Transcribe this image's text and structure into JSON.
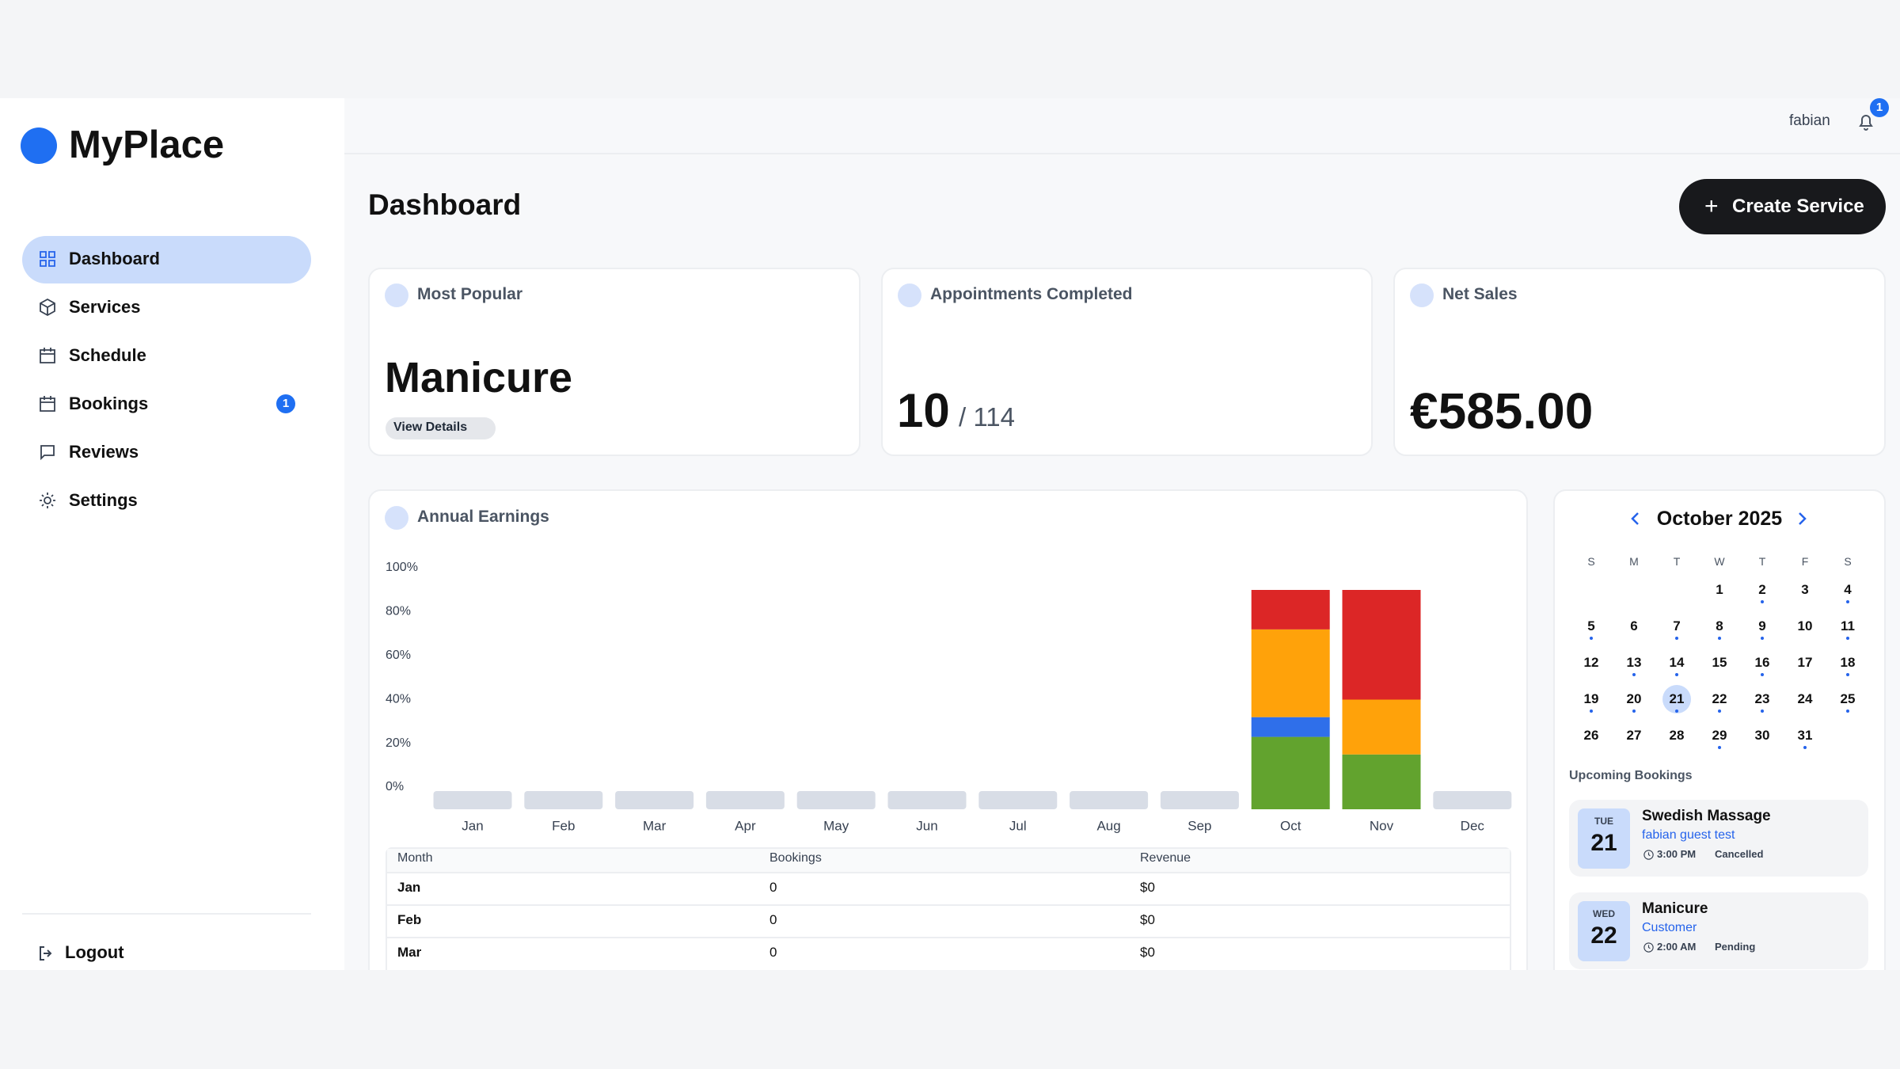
{
  "sidebar": {
    "brand": "MyPlace",
    "nav": [
      {
        "label": "Dashboard"
      },
      {
        "label": "Services"
      },
      {
        "label": "Schedule"
      },
      {
        "label": "Bookings",
        "badge": "1"
      },
      {
        "label": "Reviews"
      },
      {
        "label": "Settings"
      }
    ],
    "logout": "Logout"
  },
  "header": {
    "user": "fabian",
    "notifications": "1"
  },
  "page": {
    "title": "Dashboard",
    "action": "Create Service"
  },
  "cards": [
    {
      "title": "Most Popular",
      "value": "Manicure",
      "link": "View Details"
    },
    {
      "title": "Appointments Completed",
      "value": "10",
      "total": "/ 114"
    },
    {
      "title": "Net Sales",
      "value": "€585.00"
    }
  ],
  "earnings": {
    "title": "Annual Earnings",
    "table": {
      "columns": [
        "Month",
        "Bookings",
        "Revenue"
      ],
      "rows": [
        [
          "Jan",
          "0",
          "$0"
        ],
        [
          "Feb",
          "0",
          "$0"
        ],
        [
          "Mar",
          "0",
          "$0"
        ]
      ]
    }
  },
  "chart_data": {
    "type": "bar",
    "stacked": true,
    "categories": [
      "Jan",
      "Feb",
      "Mar",
      "Apr",
      "May",
      "Jun",
      "Jul",
      "Aug",
      "Sep",
      "Oct",
      "Nov",
      "Dec"
    ],
    "series": [
      {
        "color": "#62a32e",
        "values": [
          0,
          0,
          0,
          0,
          0,
          0,
          0,
          0,
          0,
          33,
          25,
          0
        ]
      },
      {
        "color": "#2f6fea",
        "values": [
          0,
          0,
          0,
          0,
          0,
          0,
          0,
          0,
          0,
          9,
          0,
          0
        ]
      },
      {
        "color": "#ffa20a",
        "values": [
          0,
          0,
          0,
          0,
          0,
          0,
          0,
          0,
          0,
          40,
          25,
          0
        ]
      },
      {
        "color": "#dc2626",
        "values": [
          0,
          0,
          0,
          0,
          0,
          0,
          0,
          0,
          0,
          18,
          50,
          0
        ]
      }
    ],
    "ylim": [
      0,
      100
    ],
    "yticks": [
      {
        "value": 0,
        "label": "0%"
      },
      {
        "value": 20,
        "label": "20%"
      },
      {
        "value": 40,
        "label": "40%"
      },
      {
        "value": 60,
        "label": "60%"
      },
      {
        "value": 80,
        "label": "80%"
      },
      {
        "value": 100,
        "label": "100%"
      }
    ],
    "grid": false
  },
  "calendar": {
    "month": "October 2025",
    "weekdays": [
      "S",
      "M",
      "T",
      "W",
      "T",
      "F",
      "S"
    ],
    "weeks": [
      [
        null,
        null,
        null,
        1,
        2,
        3,
        4
      ],
      [
        5,
        6,
        7,
        8,
        9,
        10,
        11
      ],
      [
        12,
        13,
        14,
        15,
        16,
        17,
        18
      ],
      [
        19,
        20,
        21,
        22,
        23,
        24,
        25
      ],
      [
        26,
        27,
        28,
        29,
        30,
        31,
        null
      ]
    ],
    "selected": 21,
    "marked": [
      2,
      4,
      5,
      7,
      8,
      9,
      11,
      13,
      14,
      16,
      18,
      19,
      20,
      21,
      22,
      23,
      25,
      29,
      31
    ]
  },
  "upcoming": {
    "title": "Upcoming Bookings",
    "items": [
      {
        "weekday": "TUE",
        "day": "21",
        "title": "Swedish Massage",
        "customer": "fabian guest test",
        "time": "3:00 PM",
        "status": "Cancelled"
      },
      {
        "weekday": "WED",
        "day": "22",
        "title": "Manicure",
        "customer": "Customer",
        "time": "2:00 AM",
        "status": "Pending"
      }
    ]
  }
}
